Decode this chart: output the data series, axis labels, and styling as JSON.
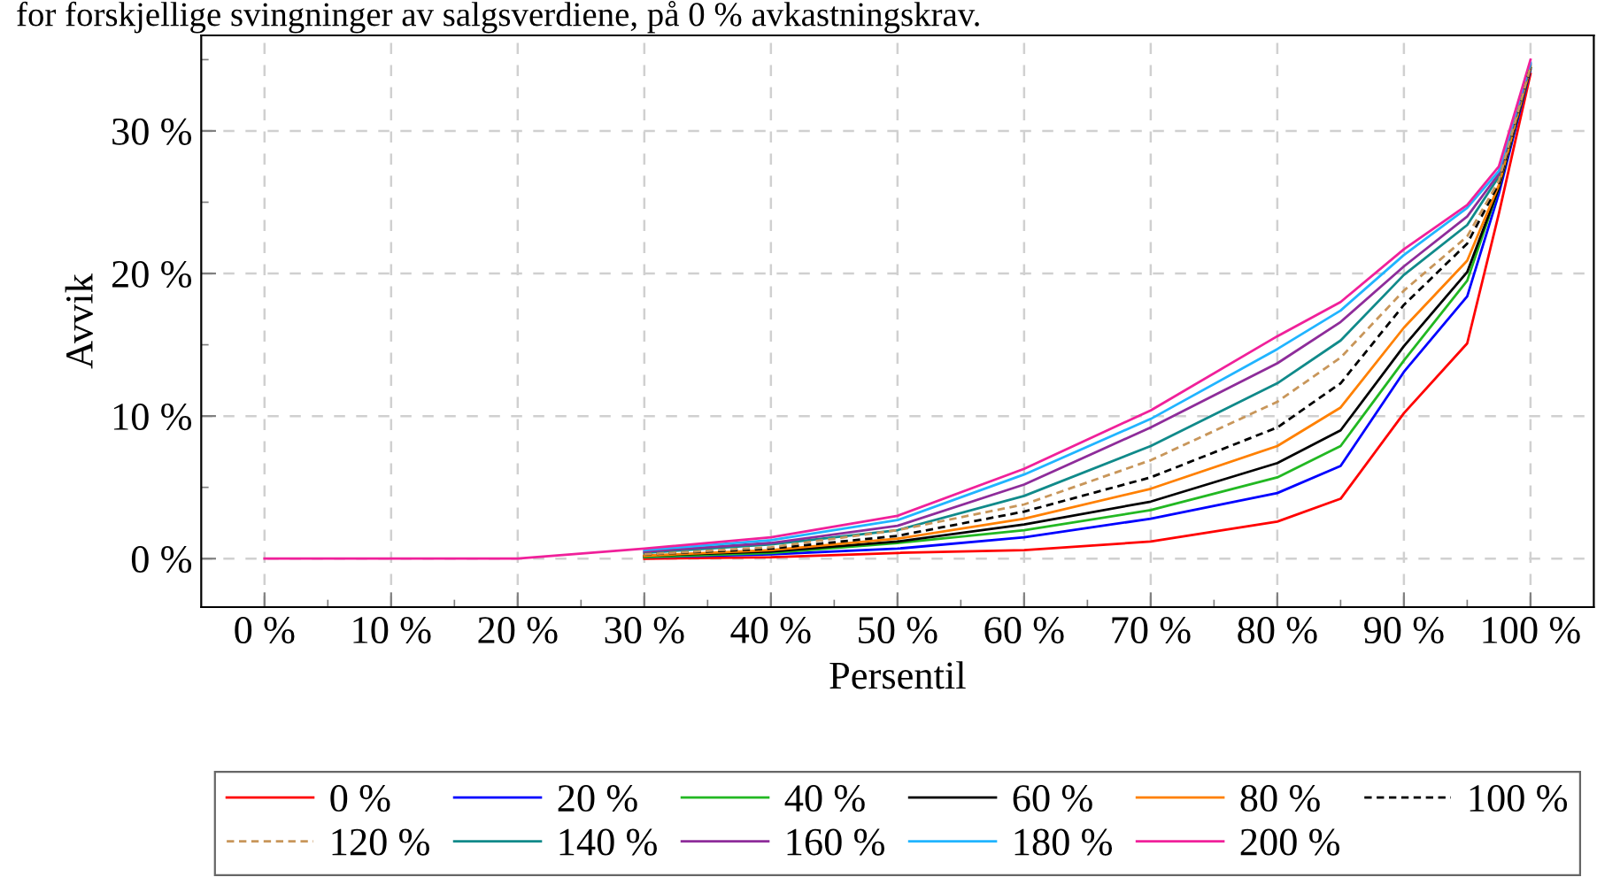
{
  "chart_data": {
    "type": "line",
    "title": "for forskjellige svingninger av salgsverdiene, på 0 % avkastningskrav.",
    "xlabel": "Persentil",
    "ylabel": "Avvik",
    "x": [
      0,
      10,
      20,
      30,
      40,
      50,
      60,
      70,
      80,
      85,
      90,
      95,
      97.5,
      100
    ],
    "xlim": [
      -5,
      105
    ],
    "xticks": [
      {
        "value": 0,
        "label": "0 %"
      },
      {
        "value": 10,
        "label": "10 %"
      },
      {
        "value": 20,
        "label": "20 %"
      },
      {
        "value": 30,
        "label": "30 %"
      },
      {
        "value": 40,
        "label": "40 %"
      },
      {
        "value": 50,
        "label": "50 %"
      },
      {
        "value": 60,
        "label": "60 %"
      },
      {
        "value": 70,
        "label": "70 %"
      },
      {
        "value": 80,
        "label": "80 %"
      },
      {
        "value": 90,
        "label": "90 %"
      },
      {
        "value": 100,
        "label": "100 %"
      }
    ],
    "ylim": [
      -3.4,
      36.7
    ],
    "yticks": [
      {
        "value": 0,
        "label": "0 %"
      },
      {
        "value": 10,
        "label": "10 %"
      },
      {
        "value": 20,
        "label": "20 %"
      },
      {
        "value": 30,
        "label": "30 %"
      }
    ],
    "grid": true,
    "legend": "bottom",
    "marker": "none",
    "series": [
      {
        "name": "0 %",
        "color": "#ff0000",
        "values": [
          null,
          null,
          null,
          0,
          0.1,
          0.4,
          0.6,
          1.2,
          2.6,
          4.2,
          10.2,
          15.1,
          24.2,
          34
        ]
      },
      {
        "name": "20 %",
        "color": "#0000ff",
        "values": [
          null,
          null,
          null,
          0.1,
          0.3,
          0.7,
          1.5,
          2.8,
          4.6,
          6.5,
          13.1,
          18.4,
          25.6,
          34.3
        ]
      },
      {
        "name": "40 %",
        "color": "#22b822",
        "values": [
          null,
          null,
          null,
          0.1,
          0.4,
          1.1,
          2.0,
          3.4,
          5.7,
          7.9,
          13.9,
          19.5,
          26,
          34.4
        ]
      },
      {
        "name": "60 %",
        "color": "#000000",
        "values": [
          null,
          null,
          null,
          0.2,
          0.5,
          1.2,
          2.4,
          4.0,
          6.7,
          9.0,
          14.9,
          20.1,
          26,
          34.4
        ]
      },
      {
        "name": "80 %",
        "color": "#ff8000",
        "values": [
          null,
          null,
          null,
          0.2,
          0.6,
          1.4,
          2.8,
          4.9,
          7.9,
          10.6,
          16.2,
          20.9,
          26.2,
          34.5
        ]
      },
      {
        "name": "100 %",
        "color": "#000000",
        "line_style": "dashed",
        "values": [
          null,
          null,
          null,
          0.3,
          0.7,
          1.6,
          3.3,
          5.7,
          9.2,
          12.3,
          17.8,
          22.1,
          26.3,
          34.5
        ]
      },
      {
        "name": "120 %",
        "color": "#c8965a",
        "line_style": "dashed",
        "values": [
          null,
          null,
          null,
          0.3,
          0.8,
          2.0,
          3.8,
          6.9,
          11.0,
          14.1,
          18.8,
          22.6,
          26.5,
          34.5
        ]
      },
      {
        "name": "140 %",
        "color": "#108a8a",
        "values": [
          null,
          null,
          null,
          0.4,
          1.0,
          2.0,
          4.4,
          7.9,
          12.3,
          15.3,
          19.9,
          23.4,
          26.8,
          34.6
        ]
      },
      {
        "name": "160 %",
        "color": "#8e2c9a",
        "values": [
          null,
          null,
          null,
          0.5,
          1.1,
          2.3,
          5.2,
          9.2,
          13.7,
          16.6,
          20.5,
          24.0,
          27,
          34.7
        ]
      },
      {
        "name": "180 %",
        "color": "#20b4ff",
        "values": [
          null,
          null,
          null,
          0.6,
          1.3,
          2.7,
          5.9,
          9.8,
          14.7,
          17.4,
          21.3,
          24.6,
          27.2,
          34.8
        ]
      },
      {
        "name": "200 %",
        "color": "#f0209a",
        "values": [
          0,
          0,
          0,
          0.7,
          1.5,
          3.0,
          6.3,
          10.4,
          15.6,
          18.0,
          21.7,
          24.8,
          27.5,
          35
        ]
      }
    ]
  }
}
